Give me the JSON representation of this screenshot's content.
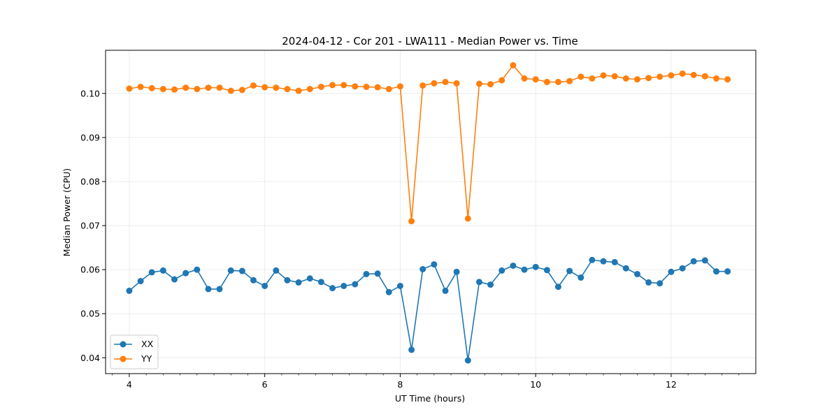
{
  "chart_data": {
    "type": "line",
    "title": "2024-04-12 - Cor 201 - LWA111 - Median Power vs. Time",
    "xlabel": "UT Time (hours)",
    "ylabel": "Median Power (CPU)",
    "xlim": [
      3.65,
      13.25
    ],
    "ylim": [
      0.0364,
      0.1098
    ],
    "xticks": [
      4,
      6,
      8,
      10,
      12
    ],
    "xtick_labels": [
      "4",
      "6",
      "8",
      "10",
      "12"
    ],
    "yticks": [
      0.04,
      0.05,
      0.06,
      0.07,
      0.08,
      0.09,
      0.1
    ],
    "ytick_labels": [
      "0.04",
      "0.05",
      "0.06",
      "0.07",
      "0.08",
      "0.09",
      "0.10"
    ],
    "grid": true,
    "legend_position": "lower-left",
    "x": [
      4.0,
      4.167,
      4.333,
      4.5,
      4.667,
      4.833,
      5.0,
      5.167,
      5.333,
      5.5,
      5.667,
      5.833,
      6.0,
      6.167,
      6.333,
      6.5,
      6.667,
      6.833,
      7.0,
      7.167,
      7.333,
      7.5,
      7.667,
      7.833,
      8.0,
      8.167,
      8.333,
      8.5,
      8.667,
      8.833,
      9.0,
      9.167,
      9.333,
      9.5,
      9.667,
      9.833,
      10.0,
      10.167,
      10.333,
      10.5,
      10.667,
      10.833,
      11.0,
      11.167,
      11.333,
      11.5,
      11.667,
      11.833,
      12.0,
      12.167,
      12.333,
      12.5,
      12.667,
      12.833
    ],
    "series": [
      {
        "name": "XX",
        "color": "#1f77b4",
        "values": [
          0.0552,
          0.0574,
          0.0594,
          0.0598,
          0.0578,
          0.0592,
          0.06,
          0.0556,
          0.0556,
          0.0598,
          0.0597,
          0.0576,
          0.0563,
          0.0598,
          0.0576,
          0.0571,
          0.058,
          0.0572,
          0.0558,
          0.0563,
          0.0567,
          0.059,
          0.0591,
          0.0549,
          0.0563,
          0.0418,
          0.0601,
          0.0612,
          0.0552,
          0.0595,
          0.0394,
          0.0572,
          0.0566,
          0.0598,
          0.0609,
          0.06,
          0.0606,
          0.0599,
          0.0561,
          0.0597,
          0.0582,
          0.0622,
          0.0619,
          0.0617,
          0.0603,
          0.059,
          0.0571,
          0.0569,
          0.0595,
          0.0603,
          0.0619,
          0.0621,
          0.0596,
          0.0596
        ]
      },
      {
        "name": "YY",
        "color": "#ff7f0e",
        "values": [
          0.1011,
          0.1015,
          0.1012,
          0.101,
          0.1009,
          0.1013,
          0.101,
          0.1013,
          0.1013,
          0.1006,
          0.1008,
          0.1018,
          0.1014,
          0.1013,
          0.101,
          0.1006,
          0.101,
          0.1015,
          0.1019,
          0.1019,
          0.1016,
          0.1015,
          0.1014,
          0.101,
          0.1016,
          0.071,
          0.1018,
          0.1023,
          0.1026,
          0.1023,
          0.0716,
          0.1022,
          0.1021,
          0.103,
          0.1064,
          0.1034,
          0.1032,
          0.1026,
          0.1026,
          0.1028,
          0.1038,
          0.1034,
          0.1041,
          0.1039,
          0.1034,
          0.1032,
          0.1035,
          0.1038,
          0.1041,
          0.1045,
          0.1042,
          0.1039,
          0.1034,
          0.1032
        ]
      }
    ]
  }
}
